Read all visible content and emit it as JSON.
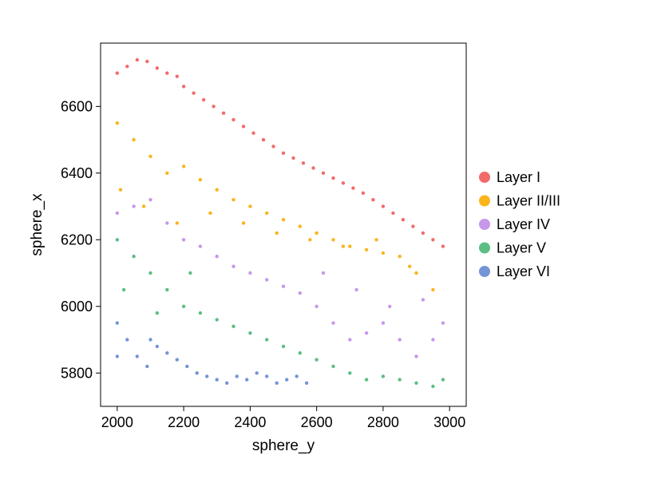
{
  "chart_data": {
    "type": "scatter",
    "title": "",
    "xlabel": "sphere_y",
    "ylabel": "sphere_x",
    "xlim": [
      1950,
      3050
    ],
    "ylim": [
      5700,
      6790
    ],
    "xticks": [
      2000,
      2200,
      2400,
      2600,
      2800,
      3000
    ],
    "yticks": [
      5800,
      6000,
      6200,
      6400,
      6600
    ],
    "grid": false,
    "legend_position": "right",
    "series": [
      {
        "name": "Layer I",
        "color": "#f26b6b",
        "x": [
          2000,
          2030,
          2060,
          2090,
          2120,
          2150,
          2180,
          2200,
          2230,
          2260,
          2290,
          2320,
          2350,
          2380,
          2410,
          2440,
          2470,
          2500,
          2530,
          2560,
          2590,
          2620,
          2650,
          2680,
          2710,
          2740,
          2770,
          2800,
          2830,
          2860,
          2890,
          2920,
          2950,
          2980
        ],
        "y": [
          6700,
          6720,
          6740,
          6735,
          6715,
          6700,
          6690,
          6660,
          6640,
          6620,
          6600,
          6580,
          6560,
          6540,
          6520,
          6500,
          6480,
          6460,
          6445,
          6430,
          6415,
          6400,
          6385,
          6370,
          6355,
          6340,
          6320,
          6300,
          6280,
          6260,
          6240,
          6220,
          6200,
          6180
        ]
      },
      {
        "name": "Layer II/III",
        "color": "#fbb41c",
        "x": [
          2000,
          2050,
          2100,
          2150,
          2200,
          2250,
          2300,
          2350,
          2400,
          2450,
          2500,
          2550,
          2600,
          2650,
          2700,
          2750,
          2800,
          2850,
          2900,
          2950,
          2010,
          2080,
          2180,
          2280,
          2380,
          2480,
          2580,
          2680,
          2780,
          2880
        ],
        "y": [
          6550,
          6500,
          6450,
          6400,
          6420,
          6380,
          6350,
          6320,
          6300,
          6280,
          6260,
          6240,
          6220,
          6200,
          6180,
          6170,
          6160,
          6150,
          6100,
          6050,
          6350,
          6300,
          6250,
          6280,
          6250,
          6220,
          6200,
          6180,
          6200,
          6120
        ]
      },
      {
        "name": "Layer IV",
        "color": "#c797ea",
        "x": [
          2000,
          2050,
          2100,
          2150,
          2200,
          2250,
          2300,
          2350,
          2400,
          2450,
          2500,
          2550,
          2600,
          2650,
          2700,
          2750,
          2800,
          2850,
          2900,
          2950,
          2980,
          2620,
          2720,
          2820,
          2920
        ],
        "y": [
          6280,
          6300,
          6320,
          6250,
          6200,
          6180,
          6150,
          6120,
          6100,
          6080,
          6060,
          6040,
          6000,
          5950,
          5900,
          5920,
          5950,
          5900,
          5850,
          5900,
          5950,
          6100,
          6050,
          6000,
          6020
        ]
      },
      {
        "name": "Layer V",
        "color": "#5cbd85",
        "x": [
          2000,
          2050,
          2100,
          2150,
          2200,
          2250,
          2300,
          2350,
          2400,
          2450,
          2500,
          2550,
          2600,
          2650,
          2700,
          2750,
          2800,
          2850,
          2900,
          2950,
          2980,
          2020,
          2120,
          2220
        ],
        "y": [
          6200,
          6150,
          6100,
          6050,
          6000,
          5980,
          5960,
          5940,
          5920,
          5900,
          5880,
          5860,
          5840,
          5820,
          5800,
          5780,
          5790,
          5780,
          5770,
          5760,
          5780,
          6050,
          5980,
          6100
        ]
      },
      {
        "name": "Layer VI",
        "color": "#7495d5",
        "x": [
          2000,
          2030,
          2060,
          2090,
          2120,
          2150,
          2180,
          2210,
          2240,
          2270,
          2300,
          2330,
          2360,
          2390,
          2420,
          2450,
          2480,
          2510,
          2540,
          2570,
          2000,
          2100
        ],
        "y": [
          5950,
          5900,
          5850,
          5820,
          5880,
          5860,
          5840,
          5820,
          5800,
          5790,
          5780,
          5770,
          5790,
          5780,
          5800,
          5790,
          5770,
          5780,
          5790,
          5770,
          5850,
          5900
        ]
      }
    ]
  }
}
